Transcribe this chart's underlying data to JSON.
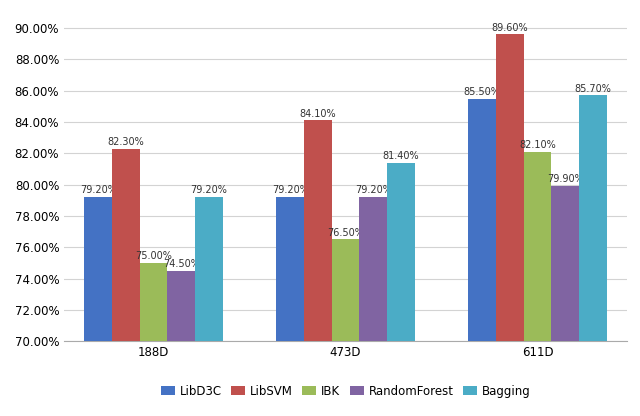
{
  "groups": [
    "188D",
    "473D",
    "611D"
  ],
  "series": [
    {
      "label": "LibD3C",
      "color": "#4472C4",
      "values": [
        79.2,
        79.2,
        85.5
      ]
    },
    {
      "label": "LibSVM",
      "color": "#C0504D",
      "values": [
        82.3,
        84.1,
        89.6
      ]
    },
    {
      "label": "IBK",
      "color": "#9BBB59",
      "values": [
        75.0,
        76.5,
        82.1
      ]
    },
    {
      "label": "RandomForest",
      "color": "#8064A2",
      "values": [
        74.5,
        79.2,
        79.9
      ]
    },
    {
      "label": "Bagging",
      "color": "#4BACC6",
      "values": [
        79.2,
        81.4,
        85.7
      ]
    }
  ],
  "ylim": [
    70.0,
    91.0
  ],
  "yticks": [
    70.0,
    72.0,
    74.0,
    76.0,
    78.0,
    80.0,
    82.0,
    84.0,
    86.0,
    88.0,
    90.0
  ],
  "bar_width": 0.13,
  "group_centers": [
    0.45,
    1.35,
    2.25
  ],
  "value_labels": {
    "188D": [
      "79.20%",
      "82.30%",
      "75.00%",
      "74.50%",
      "79.20%"
    ],
    "473D": [
      "79.20%",
      "84.10%",
      "76.50%",
      "79.20%",
      "81.40%"
    ],
    "611D": [
      "85.50%",
      "89.60%",
      "82.10%",
      "79.90%",
      "85.70%"
    ]
  },
  "background_color": "#ffffff",
  "grid_color": "#d3d3d3",
  "font_size_labels": 7.0,
  "font_size_ticks": 8.5,
  "font_size_legend": 8.5
}
